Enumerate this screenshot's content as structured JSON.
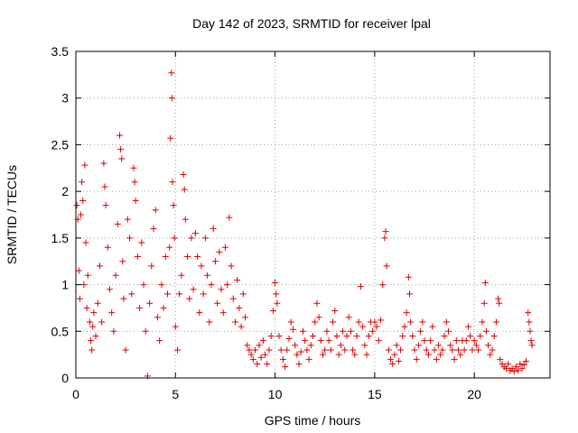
{
  "chart_data": {
    "type": "scatter",
    "title": "Day 142 of 2023, SRMTID for receiver lpal",
    "xlabel": "GPS time / hours",
    "ylabel": "SRMTID / TECUs",
    "xlim": [
      0,
      23.8
    ],
    "ylim": [
      0,
      3.5
    ],
    "xticks": [
      0,
      5,
      10,
      15,
      20
    ],
    "xtick_labels": [
      "0",
      "5",
      "10",
      "15",
      "20"
    ],
    "yticks": [
      0,
      0.5,
      1,
      1.5,
      2,
      2.5,
      3,
      3.5
    ],
    "ytick_labels": [
      "0",
      "0.5",
      "1",
      "1.5",
      "2",
      "2.5",
      "3",
      "3.5"
    ],
    "grid": true,
    "marker": "+",
    "color": "#e00000",
    "series": [
      {
        "name": "SRMTID",
        "points": [
          [
            0.05,
            1.85
          ],
          [
            0.1,
            1.7
          ],
          [
            0.15,
            1.15
          ],
          [
            0.2,
            0.85
          ],
          [
            0.25,
            1.75
          ],
          [
            0.3,
            2.1
          ],
          [
            0.35,
            1.9
          ],
          [
            0.4,
            1.0
          ],
          [
            0.45,
            2.28
          ],
          [
            0.5,
            1.45
          ],
          [
            0.55,
            0.75
          ],
          [
            0.6,
            1.1
          ],
          [
            0.7,
            0.6
          ],
          [
            0.75,
            0.4
          ],
          [
            0.8,
            0.3
          ],
          [
            0.85,
            0.55
          ],
          [
            0.9,
            0.7
          ],
          [
            1.0,
            0.45
          ],
          [
            1.1,
            0.8
          ],
          [
            1.2,
            1.2
          ],
          [
            1.3,
            0.6
          ],
          [
            1.4,
            2.3
          ],
          [
            1.45,
            2.05
          ],
          [
            1.5,
            1.85
          ],
          [
            1.6,
            1.4
          ],
          [
            1.7,
            0.95
          ],
          [
            1.8,
            0.7
          ],
          [
            1.9,
            0.5
          ],
          [
            2.0,
            1.1
          ],
          [
            2.1,
            1.65
          ],
          [
            2.2,
            2.6
          ],
          [
            2.25,
            2.45
          ],
          [
            2.3,
            2.35
          ],
          [
            2.35,
            1.25
          ],
          [
            2.4,
            0.85
          ],
          [
            2.5,
            0.3
          ],
          [
            2.6,
            1.7
          ],
          [
            2.7,
            1.5
          ],
          [
            2.8,
            0.9
          ],
          [
            2.9,
            2.25
          ],
          [
            2.95,
            2.1
          ],
          [
            3.0,
            1.9
          ],
          [
            3.1,
            1.3
          ],
          [
            3.2,
            0.75
          ],
          [
            3.3,
            1.45
          ],
          [
            3.4,
            1.0
          ],
          [
            3.5,
            0.5
          ],
          [
            3.6,
            0.02
          ],
          [
            3.7,
            0.8
          ],
          [
            3.8,
            1.2
          ],
          [
            3.9,
            1.6
          ],
          [
            4.0,
            1.8
          ],
          [
            4.1,
            0.65
          ],
          [
            4.2,
            0.4
          ],
          [
            4.3,
            1.0
          ],
          [
            4.4,
            0.75
          ],
          [
            4.5,
            1.3
          ],
          [
            4.6,
            0.9
          ],
          [
            4.7,
            1.4
          ],
          [
            4.75,
            2.57
          ],
          [
            4.8,
            3.27
          ],
          [
            4.82,
            3.0
          ],
          [
            4.85,
            2.1
          ],
          [
            4.9,
            1.85
          ],
          [
            4.95,
            1.5
          ],
          [
            5.0,
            0.55
          ],
          [
            5.1,
            0.3
          ],
          [
            5.2,
            0.9
          ],
          [
            5.3,
            1.1
          ],
          [
            5.4,
            2.18
          ],
          [
            5.45,
            2.02
          ],
          [
            5.5,
            1.7
          ],
          [
            5.6,
            1.3
          ],
          [
            5.7,
            0.85
          ],
          [
            5.8,
            1.5
          ],
          [
            5.9,
            0.95
          ],
          [
            6.0,
            1.55
          ],
          [
            6.1,
            1.3
          ],
          [
            6.2,
            0.7
          ],
          [
            6.3,
            1.2
          ],
          [
            6.4,
            0.9
          ],
          [
            6.5,
            1.5
          ],
          [
            6.6,
            1.1
          ],
          [
            6.7,
            0.6
          ],
          [
            6.8,
            1.0
          ],
          [
            6.9,
            1.6
          ],
          [
            7.0,
            1.25
          ],
          [
            7.1,
            0.8
          ],
          [
            7.2,
            1.35
          ],
          [
            7.3,
            0.95
          ],
          [
            7.4,
            0.7
          ],
          [
            7.5,
            1.4
          ],
          [
            7.6,
            1.0
          ],
          [
            7.7,
            1.72
          ],
          [
            7.8,
            1.2
          ],
          [
            7.9,
            0.85
          ],
          [
            8.0,
            0.6
          ],
          [
            8.1,
            1.05
          ],
          [
            8.2,
            0.75
          ],
          [
            8.3,
            0.55
          ],
          [
            8.4,
            0.9
          ],
          [
            8.5,
            0.65
          ],
          [
            8.6,
            0.35
          ],
          [
            8.7,
            0.3
          ],
          [
            8.8,
            0.25
          ],
          [
            8.9,
            0.2
          ],
          [
            9.0,
            0.3
          ],
          [
            9.1,
            0.15
          ],
          [
            9.2,
            0.35
          ],
          [
            9.3,
            0.22
          ],
          [
            9.4,
            0.4
          ],
          [
            9.5,
            0.25
          ],
          [
            9.6,
            0.15
          ],
          [
            9.7,
            0.3
          ],
          [
            9.8,
            0.45
          ],
          [
            9.9,
            0.72
          ],
          [
            10.0,
            1.02
          ],
          [
            10.05,
            0.9
          ],
          [
            10.1,
            0.8
          ],
          [
            10.2,
            0.45
          ],
          [
            10.3,
            0.3
          ],
          [
            10.4,
            0.2
          ],
          [
            10.5,
            0.12
          ],
          [
            10.6,
            0.3
          ],
          [
            10.7,
            0.42
          ],
          [
            10.8,
            0.6
          ],
          [
            10.9,
            0.52
          ],
          [
            11.0,
            0.35
          ],
          [
            11.1,
            0.25
          ],
          [
            11.2,
            0.15
          ],
          [
            11.3,
            0.28
          ],
          [
            11.4,
            0.5
          ],
          [
            11.5,
            0.4
          ],
          [
            11.6,
            0.3
          ],
          [
            11.7,
            0.2
          ],
          [
            11.8,
            0.35
          ],
          [
            11.9,
            0.45
          ],
          [
            12.0,
            0.6
          ],
          [
            12.1,
            0.8
          ],
          [
            12.2,
            0.65
          ],
          [
            12.3,
            0.4
          ],
          [
            12.4,
            0.25
          ],
          [
            12.5,
            0.3
          ],
          [
            12.6,
            0.5
          ],
          [
            12.7,
            0.4
          ],
          [
            12.8,
            0.3
          ],
          [
            12.9,
            0.6
          ],
          [
            13.0,
            0.72
          ],
          [
            13.1,
            0.45
          ],
          [
            13.2,
            0.25
          ],
          [
            13.3,
            0.35
          ],
          [
            13.4,
            0.5
          ],
          [
            13.5,
            0.3
          ],
          [
            13.6,
            0.45
          ],
          [
            13.7,
            0.65
          ],
          [
            13.8,
            0.5
          ],
          [
            13.9,
            0.3
          ],
          [
            14.0,
            0.25
          ],
          [
            14.1,
            0.45
          ],
          [
            14.2,
            0.6
          ],
          [
            14.3,
            0.98
          ],
          [
            14.4,
            0.55
          ],
          [
            14.5,
            0.35
          ],
          [
            14.6,
            0.25
          ],
          [
            14.7,
            0.45
          ],
          [
            14.8,
            0.6
          ],
          [
            14.9,
            0.5
          ],
          [
            15.0,
            0.6
          ],
          [
            15.1,
            0.55
          ],
          [
            15.2,
            0.4
          ],
          [
            15.3,
            0.62
          ],
          [
            15.4,
            1.0
          ],
          [
            15.5,
            1.5
          ],
          [
            15.55,
            1.57
          ],
          [
            15.6,
            1.2
          ],
          [
            15.7,
            0.3
          ],
          [
            15.8,
            0.2
          ],
          [
            15.9,
            0.15
          ],
          [
            16.0,
            0.25
          ],
          [
            16.1,
            0.35
          ],
          [
            16.2,
            0.18
          ],
          [
            16.3,
            0.3
          ],
          [
            16.4,
            0.45
          ],
          [
            16.5,
            0.55
          ],
          [
            16.6,
            0.7
          ],
          [
            16.7,
            1.08
          ],
          [
            16.75,
            0.9
          ],
          [
            16.8,
            0.6
          ],
          [
            16.9,
            0.45
          ],
          [
            17.0,
            0.3
          ],
          [
            17.1,
            0.2
          ],
          [
            17.2,
            0.35
          ],
          [
            17.3,
            0.5
          ],
          [
            17.4,
            0.6
          ],
          [
            17.5,
            0.4
          ],
          [
            17.6,
            0.3
          ],
          [
            17.7,
            0.25
          ],
          [
            17.8,
            0.4
          ],
          [
            17.9,
            0.55
          ],
          [
            18.0,
            0.3
          ],
          [
            18.1,
            0.2
          ],
          [
            18.2,
            0.35
          ],
          [
            18.3,
            0.25
          ],
          [
            18.4,
            0.3
          ],
          [
            18.5,
            0.45
          ],
          [
            18.6,
            0.6
          ],
          [
            18.7,
            0.5
          ],
          [
            18.8,
            0.35
          ],
          [
            18.9,
            0.3
          ],
          [
            19.0,
            0.2
          ],
          [
            19.1,
            0.4
          ],
          [
            19.2,
            0.3
          ],
          [
            19.3,
            0.25
          ],
          [
            19.4,
            0.4
          ],
          [
            19.5,
            0.3
          ],
          [
            19.6,
            0.4
          ],
          [
            19.7,
            0.55
          ],
          [
            19.8,
            0.45
          ],
          [
            19.9,
            0.3
          ],
          [
            20.0,
            0.4
          ],
          [
            20.1,
            0.35
          ],
          [
            20.2,
            0.3
          ],
          [
            20.3,
            0.45
          ],
          [
            20.4,
            0.6
          ],
          [
            20.5,
            0.8
          ],
          [
            20.55,
            1.02
          ],
          [
            20.6,
            0.5
          ],
          [
            20.7,
            0.35
          ],
          [
            20.8,
            0.25
          ],
          [
            20.9,
            0.3
          ],
          [
            21.0,
            0.45
          ],
          [
            21.1,
            0.6
          ],
          [
            21.2,
            0.85
          ],
          [
            21.25,
            0.8
          ],
          [
            21.3,
            0.2
          ],
          [
            21.4,
            0.15
          ],
          [
            21.5,
            0.12
          ],
          [
            21.6,
            0.1
          ],
          [
            21.7,
            0.15
          ],
          [
            21.8,
            0.08
          ],
          [
            21.9,
            0.1
          ],
          [
            22.0,
            0.07
          ],
          [
            22.1,
            0.12
          ],
          [
            22.2,
            0.08
          ],
          [
            22.3,
            0.15
          ],
          [
            22.4,
            0.1
          ],
          [
            22.5,
            0.14
          ],
          [
            22.6,
            0.18
          ],
          [
            22.7,
            0.7
          ],
          [
            22.75,
            0.6
          ],
          [
            22.8,
            0.5
          ],
          [
            22.85,
            0.4
          ],
          [
            22.9,
            0.35
          ]
        ]
      }
    ]
  }
}
